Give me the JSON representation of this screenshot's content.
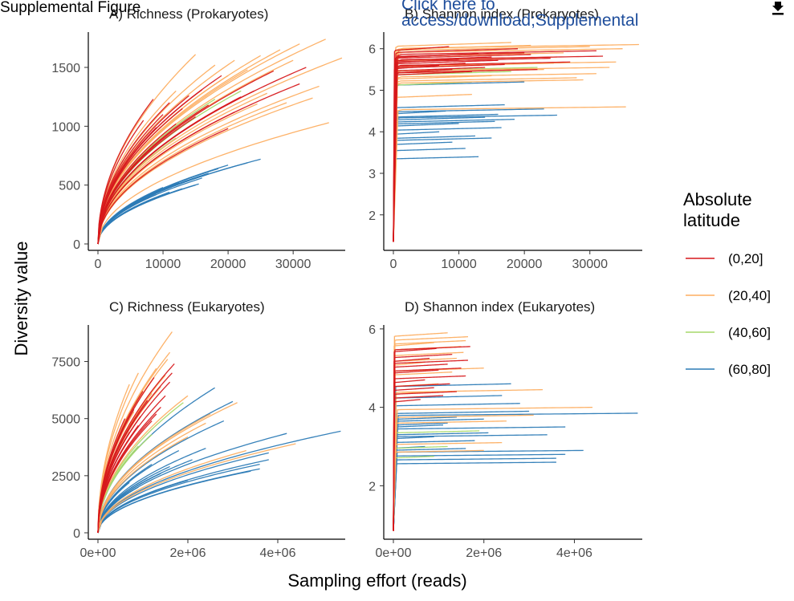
{
  "header": {
    "title": "Supplemental Figure",
    "link_text_line1": "Click here to",
    "link_text_line2": "access/download;Supplemental",
    "download_icon": "download-icon"
  },
  "colors": {
    "(0,20]": "#d7191c",
    "(20,40]": "#fdae61",
    "(40,60]": "#a6d96a",
    "(60,80]": "#2c7bb6"
  },
  "labels": {
    "xlabel": "Sampling effort (reads)",
    "ylabel": "Diversity value",
    "legend_title_line1": "Absolute",
    "legend_title_line2": "latitude"
  },
  "legend": {
    "placement": "right",
    "entries": [
      "(0,20]",
      "(20,40]",
      "(40,60]",
      "(60,80]"
    ]
  },
  "chart_data": [
    {
      "panel": "A",
      "title": "A) Richness (Prokaryotes)",
      "type": "line",
      "curve": "richness",
      "xlim": [
        0,
        38000
      ],
      "ylim": [
        0,
        1800
      ],
      "xticks": [
        0,
        10000,
        20000,
        30000
      ],
      "xtick_labels": [
        "0",
        "10000",
        "20000",
        "30000"
      ],
      "yticks": [
        0,
        500,
        1000,
        1500
      ],
      "ytick_labels": [
        "0",
        "500",
        "1000",
        "1500"
      ],
      "series": [
        {
          "group": "(0,20]",
          "curves": [
            [
              32000,
              1500
            ],
            [
              31000,
              1360
            ],
            [
              27000,
              1470
            ],
            [
              24000,
              1300
            ],
            [
              22000,
              1250
            ],
            [
              21000,
              1120
            ],
            [
              20000,
              980
            ],
            [
              19000,
              1430
            ],
            [
              17000,
              1180
            ],
            [
              16000,
              1310
            ],
            [
              15000,
              1080
            ],
            [
              14000,
              1260
            ],
            [
              13000,
              1150
            ],
            [
              12000,
              1020
            ],
            [
              11000,
              1200
            ],
            [
              10000,
              1100
            ],
            [
              9000,
              990
            ],
            [
              8500,
              1230
            ],
            [
              7000,
              1050
            ]
          ]
        },
        {
          "group": "(20,40]",
          "curves": [
            [
              37500,
              1580
            ],
            [
              35000,
              1740
            ],
            [
              34000,
              1340
            ],
            [
              33000,
              1240
            ],
            [
              31000,
              1700
            ],
            [
              30000,
              1560
            ],
            [
              28000,
              1650
            ],
            [
              26000,
              1280
            ],
            [
              25000,
              1600
            ],
            [
              24500,
              1190
            ],
            [
              23000,
              1480
            ],
            [
              21000,
              1560
            ],
            [
              20000,
              1430
            ],
            [
              18000,
              1520
            ],
            [
              15000,
              1610
            ],
            [
              35500,
              1030
            ],
            [
              29000,
              1200
            ],
            [
              12000,
              1300
            ]
          ]
        },
        {
          "group": "(40,60]",
          "curves": [
            [
              22000,
              1300
            ],
            [
              18000,
              1230
            ],
            [
              12000,
              900
            ]
          ]
        },
        {
          "group": "(60,80]",
          "curves": [
            [
              25000,
              720
            ],
            [
              23000,
              690
            ],
            [
              20000,
              670
            ],
            [
              18500,
              640
            ],
            [
              17000,
              600
            ],
            [
              16500,
              590
            ],
            [
              16000,
              560
            ],
            [
              15500,
              510
            ],
            [
              15000,
              500
            ],
            [
              14000,
              540
            ],
            [
              13000,
              470
            ],
            [
              12500,
              520
            ],
            [
              11000,
              440
            ],
            [
              10000,
              480
            ],
            [
              9000,
              420
            ],
            [
              8000,
              400
            ],
            [
              7000,
              380
            ]
          ]
        }
      ]
    },
    {
      "panel": "B",
      "title": "B) Shannon index (Prokaryotes)",
      "type": "line",
      "curve": "shannon",
      "xlim": [
        0,
        38000
      ],
      "ylim": [
        1.3,
        6.4
      ],
      "xticks": [
        0,
        10000,
        20000,
        30000
      ],
      "xtick_labels": [
        "0",
        "10000",
        "20000",
        "30000"
      ],
      "yticks": [
        2,
        3,
        4,
        5,
        6
      ],
      "ytick_labels": [
        "2",
        "3",
        "4",
        "5",
        "6"
      ],
      "series": [
        {
          "group": "(0,20]",
          "curves": [
            [
              32000,
              5.82
            ],
            [
              31000,
              5.95
            ],
            [
              27000,
              5.68
            ],
            [
              24000,
              5.77
            ],
            [
              22000,
              5.5
            ],
            [
              21000,
              5.86
            ],
            [
              20000,
              5.9
            ],
            [
              19000,
              6.0
            ],
            [
              17000,
              5.62
            ],
            [
              16000,
              5.72
            ],
            [
              15000,
              5.8
            ],
            [
              14000,
              5.55
            ],
            [
              13000,
              5.88
            ],
            [
              12000,
              5.45
            ],
            [
              11000,
              5.65
            ],
            [
              10000,
              5.75
            ],
            [
              9000,
              5.5
            ],
            [
              8500,
              6.05
            ],
            [
              7000,
              5.6
            ]
          ]
        },
        {
          "group": "(20,40]",
          "curves": [
            [
              37500,
              6.1
            ],
            [
              35000,
              6.0
            ],
            [
              34000,
              5.68
            ],
            [
              33000,
              5.55
            ],
            [
              31000,
              5.4
            ],
            [
              30000,
              6.05
            ],
            [
              28000,
              5.3
            ],
            [
              26000,
              5.9
            ],
            [
              25000,
              5.8
            ],
            [
              24500,
              5.65
            ],
            [
              23000,
              5.5
            ],
            [
              21000,
              6.08
            ],
            [
              20000,
              5.5
            ],
            [
              18000,
              6.15
            ],
            [
              15000,
              5.35
            ],
            [
              35500,
              4.6
            ],
            [
              29000,
              5.25
            ],
            [
              12000,
              4.9
            ]
          ]
        },
        {
          "group": "(40,60]",
          "curves": [
            [
              22000,
              5.55
            ],
            [
              18000,
              5.45
            ],
            [
              12000,
              5.2
            ]
          ]
        },
        {
          "group": "(60,80]",
          "curves": [
            [
              25000,
              4.4
            ],
            [
              23000,
              4.55
            ],
            [
              20000,
              5.2
            ],
            [
              18500,
              4.3
            ],
            [
              17000,
              4.65
            ],
            [
              16500,
              4.1
            ],
            [
              16000,
              4.42
            ],
            [
              15500,
              4.25
            ],
            [
              15000,
              3.85
            ],
            [
              14000,
              4.35
            ],
            [
              13000,
              3.4
            ],
            [
              12500,
              3.9
            ],
            [
              11000,
              3.6
            ],
            [
              10000,
              4.2
            ],
            [
              9000,
              3.75
            ],
            [
              8000,
              4.5
            ],
            [
              7000,
              4.0
            ]
          ]
        }
      ]
    },
    {
      "panel": "C",
      "title": "C) Richness (Eukaryotes)",
      "type": "line",
      "curve": "richness",
      "xlim": [
        0,
        5500000
      ],
      "ylim": [
        0,
        9100
      ],
      "xticks": [
        0,
        2000000,
        4000000
      ],
      "xtick_labels": [
        "0e+00",
        "2e+06",
        "4e+06"
      ],
      "yticks": [
        0,
        2500,
        5000,
        7500
      ],
      "ytick_labels": [
        "0",
        "2500",
        "5000",
        "7500"
      ],
      "series": [
        {
          "group": "(0,20]",
          "curves": [
            [
              1700000,
              7400
            ],
            [
              1650000,
              7000
            ],
            [
              1600000,
              6600
            ],
            [
              1500000,
              6000
            ],
            [
              1400000,
              5500
            ],
            [
              1300000,
              5200
            ],
            [
              1250000,
              6800
            ],
            [
              1200000,
              4900
            ],
            [
              1100000,
              5800
            ],
            [
              1000000,
              6200
            ],
            [
              950000,
              5100
            ],
            [
              900000,
              4700
            ],
            [
              800000,
              5400
            ],
            [
              700000,
              4400
            ],
            [
              600000,
              5000
            ]
          ]
        },
        {
          "group": "(20,40]",
          "curves": [
            [
              1650000,
              8800
            ],
            [
              1600000,
              7900
            ],
            [
              1550000,
              7600
            ],
            [
              1500000,
              6900
            ],
            [
              1400000,
              6400
            ],
            [
              1300000,
              7200
            ],
            [
              1200000,
              6100
            ],
            [
              1000000,
              5600
            ],
            [
              900000,
              7000
            ],
            [
              800000,
              5300
            ],
            [
              700000,
              6500
            ],
            [
              2000000,
              6000
            ],
            [
              2500000,
              5200
            ],
            [
              3100000,
              5700
            ],
            [
              2400000,
              4800
            ],
            [
              4400000,
              3900
            ],
            [
              3300000,
              3600
            ],
            [
              2000000,
              4200
            ]
          ]
        },
        {
          "group": "(40,60]",
          "curves": [
            [
              1900000,
              5700
            ],
            [
              1200000,
              4300
            ],
            [
              900000,
              3800
            ]
          ]
        },
        {
          "group": "(60,80]",
          "curves": [
            [
              5400000,
              4450
            ],
            [
              4200000,
              4350
            ],
            [
              3800000,
              3500
            ],
            [
              3600000,
              3000
            ],
            [
              3800000,
              3200
            ],
            [
              3600000,
              2800
            ],
            [
              3400000,
              2700
            ],
            [
              3000000,
              5750
            ],
            [
              2800000,
              4900
            ],
            [
              2600000,
              6350
            ],
            [
              2400000,
              3700
            ],
            [
              2100000,
              3200
            ],
            [
              2000000,
              2300
            ],
            [
              1800000,
              3600
            ],
            [
              1600000,
              2900
            ],
            [
              1400000,
              2600
            ],
            [
              1200000,
              3000
            ],
            [
              1100000,
              2400
            ],
            [
              900000,
              2000
            ],
            [
              700000,
              2200
            ]
          ]
        }
      ]
    },
    {
      "panel": "D",
      "title": "D) Shannon index (Eukaryotes)",
      "type": "line",
      "curve": "shannon",
      "xlim": [
        0,
        5500000
      ],
      "ylim": [
        0.8,
        6.1
      ],
      "xticks": [
        0,
        2000000,
        4000000
      ],
      "xtick_labels": [
        "0e+00",
        "2e+06",
        "4e+06"
      ],
      "yticks": [
        2,
        4,
        6
      ],
      "ytick_labels": [
        "2",
        "4",
        "6"
      ],
      "series": [
        {
          "group": "(0,20]",
          "curves": [
            [
              1700000,
              5.55
            ],
            [
              1650000,
              5.2
            ],
            [
              1600000,
              4.8
            ],
            [
              1500000,
              5.0
            ],
            [
              1400000,
              4.4
            ],
            [
              1300000,
              5.35
            ],
            [
              1250000,
              4.6
            ],
            [
              1200000,
              5.1
            ],
            [
              1100000,
              4.3
            ],
            [
              1000000,
              4.95
            ],
            [
              950000,
              5.5
            ],
            [
              900000,
              4.5
            ],
            [
              800000,
              5.25
            ],
            [
              700000,
              4.7
            ],
            [
              600000,
              4.2
            ]
          ]
        },
        {
          "group": "(20,40]",
          "curves": [
            [
              1650000,
              5.8
            ],
            [
              1600000,
              5.7
            ],
            [
              1550000,
              5.4
            ],
            [
              1500000,
              5.55
            ],
            [
              1400000,
              5.25
            ],
            [
              1300000,
              4.9
            ],
            [
              1200000,
              5.9
            ],
            [
              1000000,
              4.6
            ],
            [
              900000,
              5.65
            ],
            [
              800000,
              4.4
            ],
            [
              700000,
              5.15
            ],
            [
              2000000,
              5.0
            ],
            [
              2500000,
              3.65
            ],
            [
              3100000,
              3.8
            ],
            [
              2400000,
              3.1
            ],
            [
              4400000,
              4.0
            ],
            [
              3300000,
              4.45
            ],
            [
              2000000,
              2.9
            ]
          ]
        },
        {
          "group": "(40,60]",
          "curves": [
            [
              1900000,
              3.4
            ],
            [
              1200000,
              3.0
            ],
            [
              900000,
              2.75
            ]
          ]
        },
        {
          "group": "(60,80]",
          "curves": [
            [
              5400000,
              3.85
            ],
            [
              4200000,
              2.9
            ],
            [
              3800000,
              2.8
            ],
            [
              3600000,
              2.7
            ],
            [
              3800000,
              3.5
            ],
            [
              3600000,
              2.6
            ],
            [
              3400000,
              3.3
            ],
            [
              3000000,
              3.9
            ],
            [
              2800000,
              4.1
            ],
            [
              2600000,
              4.6
            ],
            [
              2400000,
              4.3
            ],
            [
              2100000,
              3.35
            ],
            [
              2000000,
              3.7
            ],
            [
              1800000,
              3.15
            ],
            [
              1600000,
              2.95
            ],
            [
              1400000,
              3.75
            ],
            [
              1200000,
              3.6
            ],
            [
              1100000,
              3.55
            ],
            [
              900000,
              3.25
            ],
            [
              700000,
              3.0
            ]
          ]
        }
      ]
    }
  ]
}
